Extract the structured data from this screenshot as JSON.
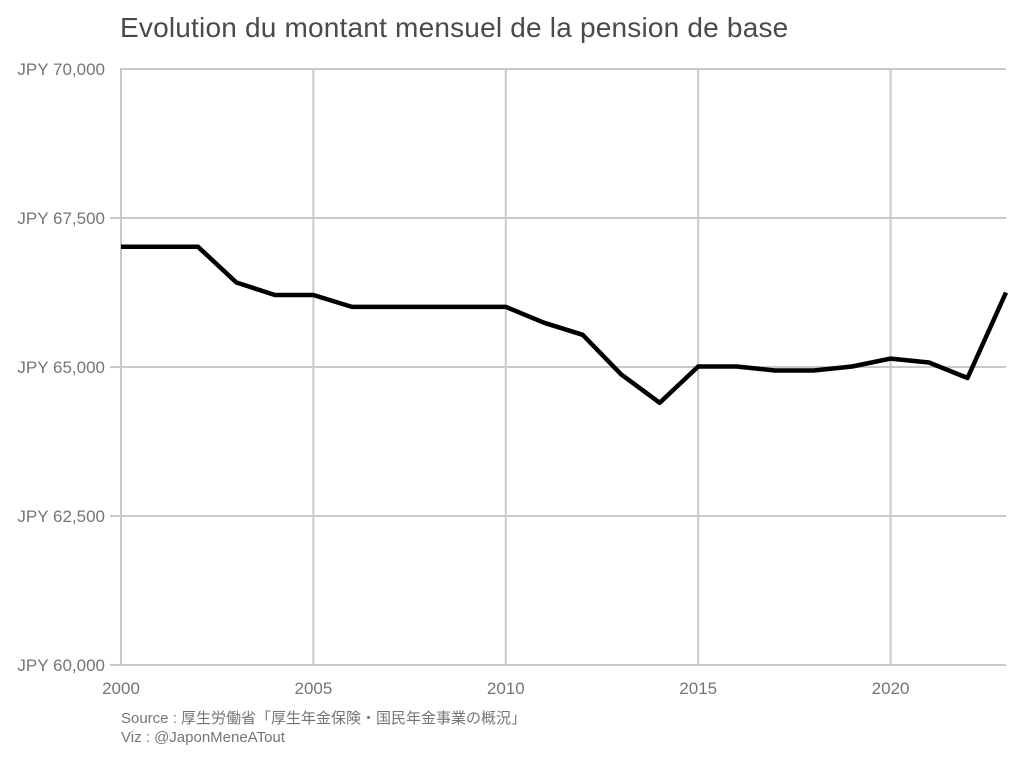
{
  "page": {
    "background": "#ffffff"
  },
  "chart_data": {
    "type": "line",
    "title": "Evolution du montant mensuel de la pension de base",
    "xlabel": "",
    "ylabel": "",
    "x": [
      2000,
      2001,
      2002,
      2003,
      2004,
      2005,
      2006,
      2007,
      2008,
      2009,
      2010,
      2011,
      2012,
      2013,
      2014,
      2015,
      2016,
      2017,
      2018,
      2019,
      2020,
      2021,
      2022,
      2023
    ],
    "values": [
      67017,
      67017,
      67017,
      66417,
      66208,
      66208,
      66008,
      66008,
      66008,
      66008,
      66008,
      65741,
      65541,
      64875,
      64400,
      65008,
      65008,
      64941,
      64941,
      65008,
      65141,
      65075,
      64816,
      66250
    ],
    "xlim": [
      2000,
      2023
    ],
    "ylim": [
      60000,
      70000
    ],
    "x_tick_values": [
      2000,
      2005,
      2010,
      2015,
      2020
    ],
    "x_tick_labels": [
      "2000",
      "2005",
      "2010",
      "2015",
      "2020"
    ],
    "y_tick_values": [
      70000,
      67500,
      65000,
      62500,
      60000
    ],
    "y_tick_labels": [
      "JPY 70,000",
      "JPY 67,500",
      "JPY 65,000",
      "JPY 62,500",
      "JPY 60,000"
    ],
    "grid": true,
    "legend": false,
    "colors": {
      "line": "#000000",
      "grid": "#c9c9c9",
      "axis": "#c9c9c9",
      "tick_label": "#757575",
      "title": "#4a4a4a",
      "footnote": "#757575",
      "background": "#ffffff"
    }
  },
  "footer": {
    "source_label": "Source : 厚生労働省「厚生年金保険・国民年金事業の概況」",
    "viz_label": "Viz : @JaponMeneATout"
  }
}
